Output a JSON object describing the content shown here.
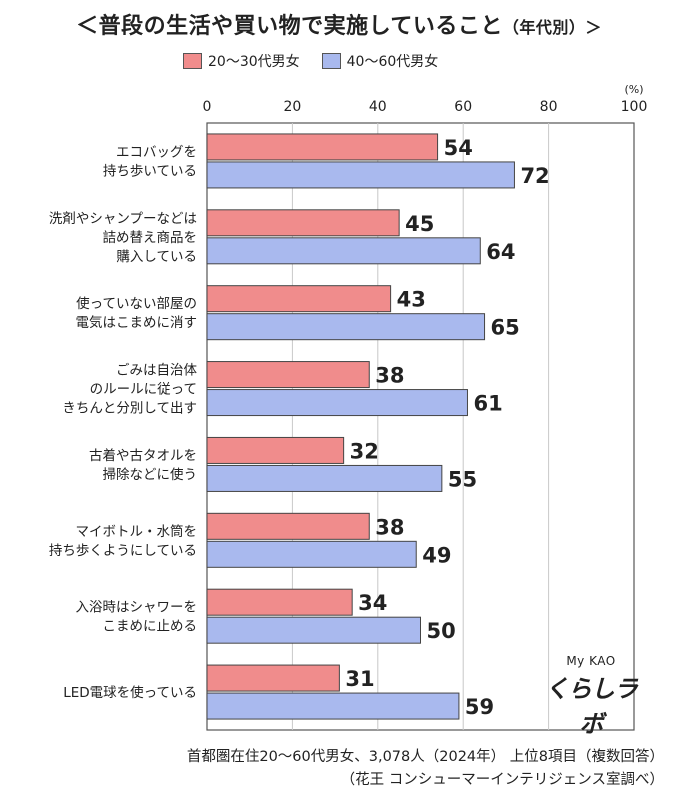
{
  "title": {
    "main": "＜普段の生活や買い物で実施していること",
    "suffix": "（年代別）＞"
  },
  "legend": [
    {
      "label": "20～30代男女",
      "color": "#f08c8c"
    },
    {
      "label": "40～60代男女",
      "color": "#a9b9ee"
    }
  ],
  "chart_data": {
    "type": "bar",
    "orientation": "horizontal",
    "unit_label": "(%)",
    "xlim": [
      0,
      100
    ],
    "x_ticks": [
      "0",
      "20",
      "40",
      "60",
      "80",
      "100"
    ],
    "categories": [
      [
        "エコバッグを",
        "持ち歩いている"
      ],
      [
        "洗剤やシャンプーなどは",
        "詰め替え商品を",
        "購入している"
      ],
      [
        "使っていない部屋の",
        "電気はこまめに消す"
      ],
      [
        "ごみは自治体",
        "のルールに従って",
        "きちんと分別して出す"
      ],
      [
        "古着や古タオルを",
        "掃除などに使う"
      ],
      [
        "マイボトル・水筒を",
        "持ち歩くようにしている"
      ],
      [
        "入浴時はシャワーを",
        "こまめに止める"
      ],
      [
        "LED電球を使っている"
      ]
    ],
    "series": [
      {
        "name": "20～30代男女",
        "color": "#f08c8c",
        "values": [
          54,
          45,
          43,
          38,
          32,
          38,
          34,
          31
        ]
      },
      {
        "name": "40～60代男女",
        "color": "#a9b9ee",
        "values": [
          72,
          64,
          65,
          61,
          55,
          49,
          50,
          59
        ]
      }
    ],
    "grid": true
  },
  "logo": {
    "top": "My KAO",
    "main": "くらしラボ"
  },
  "footer": {
    "line1": "首都圏在住20～60代男女、3,078人（2024年） 上位8項目（複数回答）",
    "line2": "（花王 コンシューマーインテリジェンス室調べ）"
  }
}
